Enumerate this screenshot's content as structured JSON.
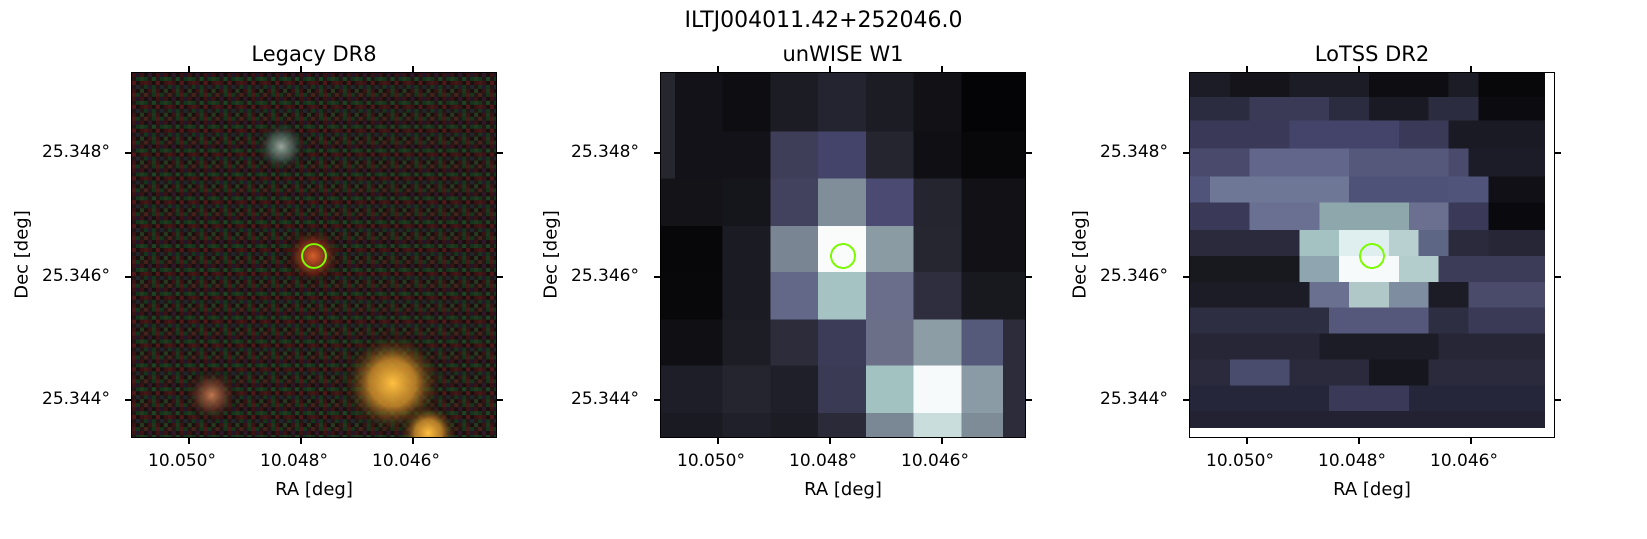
{
  "figure_title": "ILTJ004011.42+252046.0",
  "panels": [
    {
      "title": "Legacy DR8",
      "xlabel": "RA [deg]",
      "ylabel": "Dec [deg]",
      "xticks": [
        "10.050°",
        "10.048°",
        "10.046°"
      ],
      "yticks": [
        "25.348°",
        "25.346°",
        "25.344°"
      ]
    },
    {
      "title": "unWISE W1",
      "xlabel": "RA [deg]",
      "ylabel": "Dec [deg]",
      "xticks": [
        "10.050°",
        "10.048°",
        "10.046°"
      ],
      "yticks": [
        "25.348°",
        "25.346°",
        "25.344°"
      ]
    },
    {
      "title": "LoTSS DR2",
      "xlabel": "RA [deg]",
      "ylabel": "Dec [deg]",
      "xticks": [
        "10.050°",
        "10.048°",
        "10.046°"
      ],
      "yticks": [
        "25.348°",
        "25.346°",
        "25.344°"
      ]
    }
  ],
  "marker": {
    "ra": 10.0477,
    "dec": 25.3463,
    "color": "#7cfc00",
    "shape": "circle"
  },
  "colors": {
    "marker": "#7cfc00",
    "background": "#ffffff"
  }
}
